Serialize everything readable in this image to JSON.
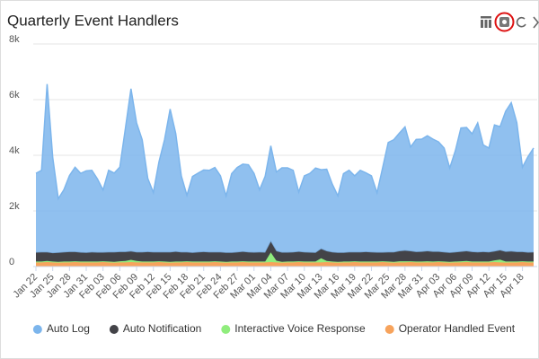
{
  "chart_data": {
    "type": "stacked-area",
    "title": "Quarterly Event Handlers",
    "categories": [
      "Jan 22",
      null,
      null,
      "Jan 25",
      null,
      null,
      "Jan 28",
      null,
      null,
      "Jan 31",
      null,
      null,
      "Feb 03",
      null,
      null,
      "Feb 06",
      null,
      null,
      "Feb 09",
      null,
      null,
      "Feb 12",
      null,
      null,
      "Feb 15",
      null,
      null,
      "Feb 18",
      null,
      null,
      "Feb 21",
      null,
      null,
      "Feb 24",
      null,
      null,
      "Feb 27",
      null,
      null,
      "Mar 01",
      null,
      null,
      "Mar 04",
      null,
      null,
      "Mar 07",
      null,
      null,
      "Mar 10",
      null,
      null,
      "Mar 13",
      null,
      null,
      "Mar 16",
      null,
      null,
      "Mar 19",
      null,
      null,
      "Mar 22",
      null,
      null,
      "Mar 25",
      null,
      null,
      "Mar 28",
      null,
      null,
      "Mar 31",
      null,
      null,
      "Apr 03",
      null,
      null,
      "Apr 06",
      null,
      null,
      "Apr 09",
      null,
      null,
      "Apr 12",
      null,
      null,
      "Apr 15",
      null,
      null,
      "Apr 18",
      null,
      null
    ],
    "series": [
      {
        "name": "Auto Log",
        "color": "#7cb5ec",
        "values": [
          2850,
          2950,
          6050,
          3450,
          1950,
          2250,
          2750,
          3050,
          2850,
          2950,
          2950,
          2650,
          2250,
          2950,
          2850,
          3050,
          4450,
          5850,
          4650,
          4050,
          2650,
          2150,
          3250,
          4050,
          5150,
          4250,
          2750,
          2050,
          2750,
          2850,
          2950,
          2950,
          3050,
          2750,
          2050,
          2850,
          3050,
          3150,
          3150,
          2850,
          2250,
          2750,
          3450,
          2850,
          3050,
          3050,
          2950,
          2150,
          2750,
          2850,
          3050,
          2850,
          2950,
          2450,
          2050,
          2850,
          2950,
          2750,
          2950,
          2850,
          2750,
          2150,
          3050,
          3950,
          4050,
          4250,
          4450,
          3750,
          4050,
          4050,
          4150,
          4050,
          3950,
          3750,
          3050,
          3650,
          4450,
          4450,
          4250,
          4650,
          3850,
          3750,
          4550,
          4450,
          5050,
          5350,
          4650,
          3050,
          3450,
          3750
        ]
      },
      {
        "name": "Auto Notification",
        "color": "#434348",
        "values": [
          320,
          330,
          310,
          300,
          320,
          330,
          340,
          330,
          320,
          310,
          330,
          320,
          310,
          330,
          340,
          330,
          320,
          300,
          310,
          330,
          340,
          330,
          320,
          330,
          340,
          350,
          330,
          320,
          310,
          330,
          340,
          330,
          320,
          330,
          320,
          310,
          330,
          340,
          330,
          320,
          330,
          320,
          380,
          340,
          330,
          320,
          330,
          340,
          330,
          320,
          310,
          330,
          350,
          330,
          320,
          310,
          330,
          320,
          330,
          340,
          330,
          320,
          310,
          330,
          340,
          360,
          380,
          360,
          340,
          350,
          360,
          350,
          340,
          330,
          320,
          330,
          340,
          350,
          340,
          330,
          340,
          330,
          320,
          330,
          350,
          360,
          340,
          330,
          320,
          330
        ]
      },
      {
        "name": "Interactive Voice Response",
        "color": "#90ed7d",
        "values": [
          30,
          30,
          40,
          30,
          30,
          30,
          30,
          30,
          30,
          30,
          30,
          30,
          30,
          30,
          30,
          40,
          50,
          80,
          50,
          30,
          30,
          30,
          30,
          30,
          30,
          30,
          30,
          30,
          30,
          30,
          30,
          30,
          30,
          30,
          30,
          30,
          30,
          30,
          30,
          30,
          30,
          30,
          350,
          60,
          30,
          30,
          30,
          30,
          30,
          30,
          30,
          150,
          40,
          30,
          30,
          30,
          30,
          30,
          30,
          30,
          30,
          30,
          30,
          30,
          30,
          40,
          40,
          30,
          30,
          30,
          40,
          30,
          30,
          30,
          30,
          30,
          40,
          40,
          30,
          30,
          30,
          30,
          60,
          100,
          40,
          30,
          30,
          30,
          30,
          30
        ]
      },
      {
        "name": "Operator Handled Event",
        "color": "#f7a35c",
        "values": [
          150,
          150,
          160,
          150,
          140,
          150,
          150,
          160,
          150,
          150,
          150,
          150,
          160,
          150,
          140,
          150,
          150,
          160,
          150,
          150,
          150,
          150,
          160,
          150,
          140,
          150,
          150,
          160,
          150,
          150,
          150,
          150,
          160,
          150,
          140,
          150,
          150,
          160,
          150,
          150,
          150,
          150,
          160,
          150,
          140,
          150,
          150,
          160,
          150,
          150,
          150,
          150,
          160,
          150,
          140,
          150,
          150,
          160,
          150,
          150,
          150,
          150,
          160,
          150,
          140,
          150,
          150,
          160,
          150,
          150,
          150,
          150,
          160,
          150,
          140,
          150,
          150,
          160,
          150,
          150,
          150,
          150,
          160,
          150,
          140,
          150,
          150,
          160,
          150,
          150
        ]
      }
    ],
    "ylim": [
      0,
      8000
    ],
    "yticks": [
      0,
      {
        "value": 2000,
        "label": "2k"
      },
      {
        "value": 4000,
        "label": "4k"
      },
      {
        "value": 6000,
        "label": "6k"
      },
      {
        "value": 8000,
        "label": "8k"
      }
    ],
    "grid": true,
    "legend": "bottom"
  }
}
